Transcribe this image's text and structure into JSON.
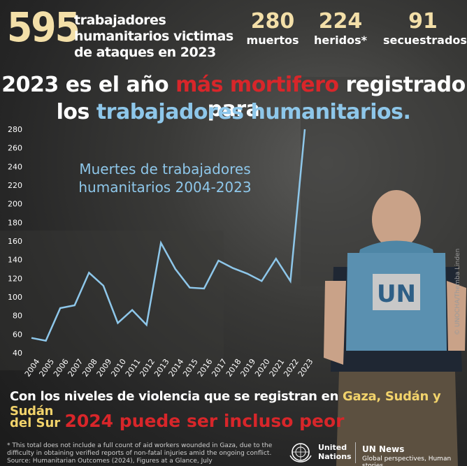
{
  "header": {
    "total": "595",
    "total_label": "trabajadores humanitarios victimas de ataques en 2023",
    "stats": [
      {
        "number": "280",
        "label": "muertos"
      },
      {
        "number": "224",
        "label": "heridos*"
      },
      {
        "number": "91",
        "label": "secuestrados"
      }
    ]
  },
  "headline": {
    "part1": "2023 es el año ",
    "part2_red": "más mortifero",
    "part3": " registrado para",
    "part4": "los ",
    "part5_blue": "trabajadores humanitarios."
  },
  "chart_data": {
    "type": "line",
    "title": "Muertes de trabajadores humanitarios 2004-2023",
    "x": [
      "2004",
      "2005",
      "2006",
      "2007",
      "2008",
      "2009",
      "2010",
      "2011",
      "2012",
      "2013",
      "2014",
      "2015",
      "2016",
      "2017",
      "2018",
      "2019",
      "2020",
      "2021",
      "2022",
      "2023"
    ],
    "series": [
      {
        "values": [
          56,
          53,
          88,
          91,
          126,
          112,
          72,
          86,
          70,
          158,
          130,
          110,
          109,
          139,
          131,
          125,
          117,
          141,
          117,
          280
        ]
      }
    ],
    "yticks": [
      40,
      60,
      80,
      100,
      120,
      140,
      160,
      180,
      200,
      220,
      240,
      260,
      280
    ],
    "ylim": [
      40,
      280
    ],
    "line_color": "#8ec7ea"
  },
  "bottom": {
    "line1a": "Con los niveles de violencia que se registran en ",
    "line1b_yellow": "Gaza, Sudán y Sudán",
    "line2a_yellow": "del Sur",
    "line2b_red": "2024 puede ser incluso peor"
  },
  "footnote": {
    "text": "* This total does not include a full count of aid workers wounded in Gaza, due to the difficulty in obtaining verified reports of non-fatal injuries amid the ongoing conflict.",
    "source": "Source: Humanitarian Outcomes (2024), Figures at a Glance, July"
  },
  "logos": {
    "un_name_line1": "United",
    "un_name_line2": "Nations",
    "news_name": "UN News",
    "news_tagline": "Global perspectives, Human stories",
    "vest_text": "UN"
  },
  "photo_credit": "© UNOCHA/Themba Linden"
}
